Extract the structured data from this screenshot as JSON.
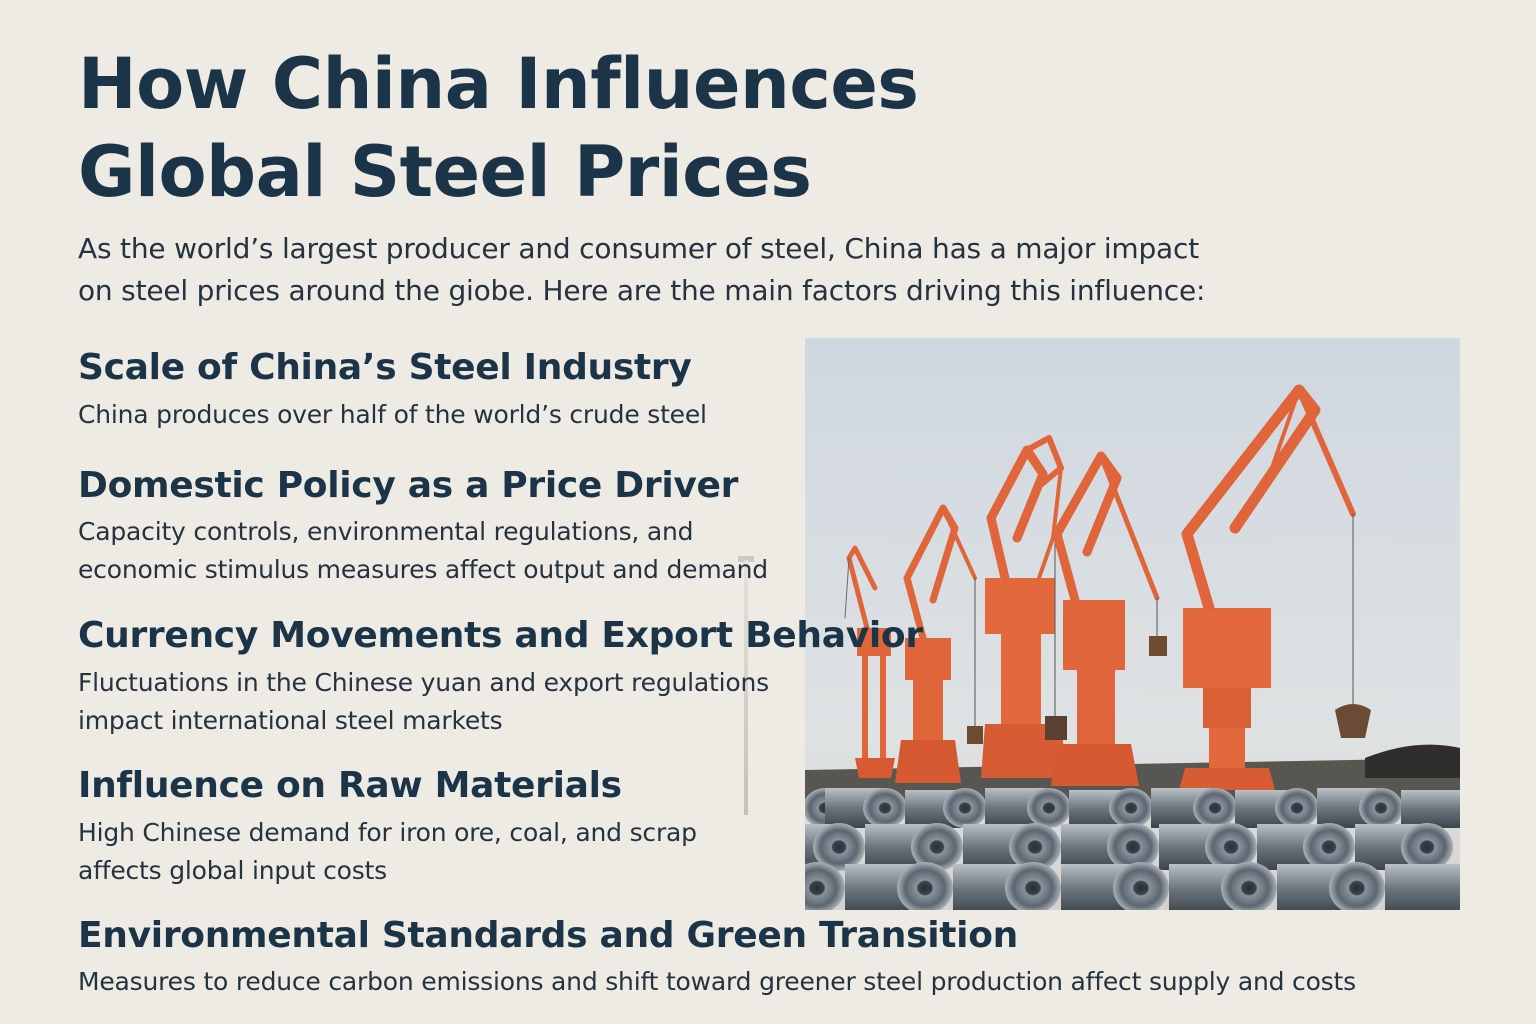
{
  "header": {
    "title_line1": "How China Influences",
    "title_line2": "Global Steel Prices"
  },
  "intro": {
    "line1": "As the world’s largest producer and consumer of steel, China has a major impact",
    "line2": "on steel prices around the giobe. Here are the main factors driving this influence:"
  },
  "sections": [
    {
      "heading": "Scale of China’s Steel Industry",
      "lines": [
        "China produces over half of the world’s crude steel"
      ]
    },
    {
      "heading": "Domestic Policy as a Price Driver",
      "lines": [
        "Capacity controls, environmental regulations, and",
        "economic stimulus measures affect output and demand"
      ]
    },
    {
      "heading": "Currency Movements and Export Behavior",
      "lines": [
        "Fluctuations in the Chinese yuan and export regulations",
        "impact international steel markets"
      ]
    },
    {
      "heading": "Influence on Raw Materials",
      "lines": [
        "High Chinese demand for iron ore, coal, and scrap",
        "affects global input costs"
      ]
    },
    {
      "heading": "Environmental Standards and Green Transition",
      "lines": [
        "Measures to reduce carbon emissions and shift toward greener steel production affect supply and costs"
      ]
    }
  ],
  "colors": {
    "background": "#eeebe5",
    "heading": "#1b3448",
    "body_text": "#24333f",
    "crane_orange": "#e0653a",
    "sky": "#d6dce2",
    "steel_coil": "#5d6670"
  },
  "photo": {
    "subject": "port-cranes-and-steel-coils"
  }
}
